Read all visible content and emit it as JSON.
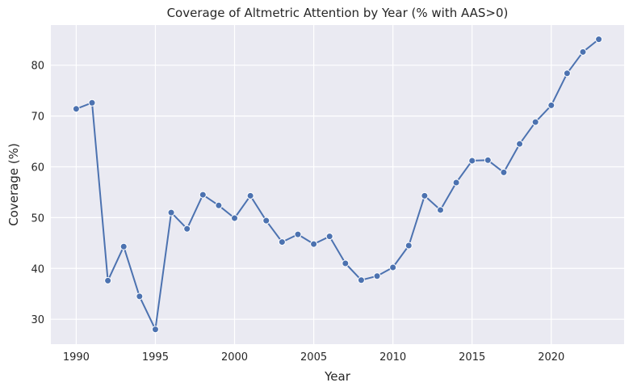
{
  "chart_data": {
    "type": "line",
    "title": "Coverage of Altmetric Attention by Year (% with AAS>0)",
    "xlabel": "Year",
    "ylabel": "Coverage (%)",
    "xlim": [
      1988.4,
      2024.6
    ],
    "ylim": [
      25.1,
      87.9
    ],
    "xticks": [
      1990,
      1995,
      2000,
      2005,
      2010,
      2015,
      2020
    ],
    "yticks": [
      30,
      40,
      50,
      60,
      70,
      80
    ],
    "grid": true,
    "colors": {
      "background": "#eaeaf2",
      "grid": "#ffffff",
      "line": "#4c72b0",
      "marker_edge": "#ffffff"
    },
    "series": [
      {
        "x": [
          1990,
          1991,
          1992,
          1993,
          1994,
          1995,
          1996,
          1997,
          1998,
          1999,
          2000,
          2001,
          2002,
          2003,
          2004,
          2005,
          2006,
          2007,
          2008,
          2009,
          2010,
          2011,
          2012,
          2013,
          2014,
          2015,
          2016,
          2017,
          2018,
          2019,
          2020,
          2021,
          2022,
          2023
        ],
        "values": [
          71.4,
          72.6,
          37.6,
          44.3,
          34.5,
          28.0,
          51.0,
          47.8,
          54.5,
          52.4,
          49.9,
          54.3,
          49.4,
          45.2,
          46.7,
          44.8,
          46.3,
          41.0,
          37.7,
          38.5,
          40.2,
          44.5,
          54.3,
          51.5,
          56.9,
          61.2,
          61.3,
          58.9,
          64.5,
          68.8,
          72.1,
          78.4,
          82.6,
          85.1
        ]
      }
    ]
  }
}
